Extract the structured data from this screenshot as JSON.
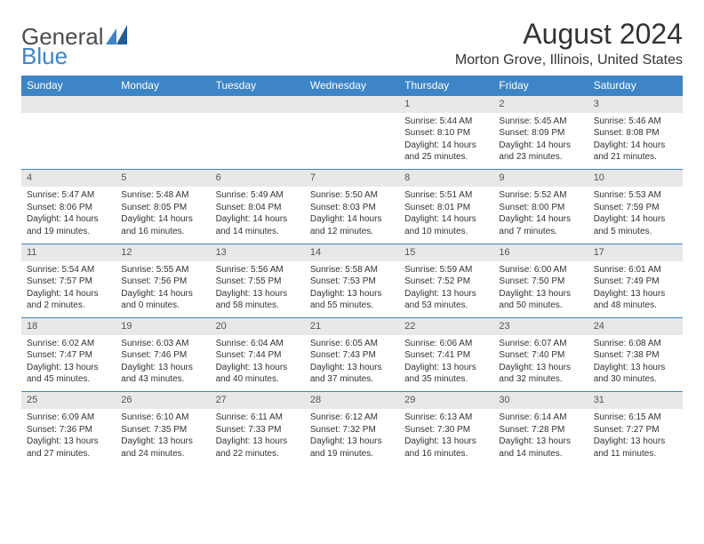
{
  "brand": {
    "general": "General",
    "blue": "Blue"
  },
  "header": {
    "title": "August 2024",
    "location": "Morton Grove, Illinois, United States"
  },
  "dow": [
    "Sunday",
    "Monday",
    "Tuesday",
    "Wednesday",
    "Thursday",
    "Friday",
    "Saturday"
  ],
  "colors": {
    "accent": "#3d85c6",
    "stripe": "#e8e8e8",
    "text": "#333333",
    "bg": "#ffffff"
  },
  "weeks": [
    [
      null,
      null,
      null,
      null,
      {
        "n": "1",
        "sr": "5:44 AM",
        "ss": "8:10 PM",
        "dh": "14",
        "dm": "25"
      },
      {
        "n": "2",
        "sr": "5:45 AM",
        "ss": "8:09 PM",
        "dh": "14",
        "dm": "23"
      },
      {
        "n": "3",
        "sr": "5:46 AM",
        "ss": "8:08 PM",
        "dh": "14",
        "dm": "21"
      }
    ],
    [
      {
        "n": "4",
        "sr": "5:47 AM",
        "ss": "8:06 PM",
        "dh": "14",
        "dm": "19"
      },
      {
        "n": "5",
        "sr": "5:48 AM",
        "ss": "8:05 PM",
        "dh": "14",
        "dm": "16"
      },
      {
        "n": "6",
        "sr": "5:49 AM",
        "ss": "8:04 PM",
        "dh": "14",
        "dm": "14"
      },
      {
        "n": "7",
        "sr": "5:50 AM",
        "ss": "8:03 PM",
        "dh": "14",
        "dm": "12"
      },
      {
        "n": "8",
        "sr": "5:51 AM",
        "ss": "8:01 PM",
        "dh": "14",
        "dm": "10"
      },
      {
        "n": "9",
        "sr": "5:52 AM",
        "ss": "8:00 PM",
        "dh": "14",
        "dm": "7"
      },
      {
        "n": "10",
        "sr": "5:53 AM",
        "ss": "7:59 PM",
        "dh": "14",
        "dm": "5"
      }
    ],
    [
      {
        "n": "11",
        "sr": "5:54 AM",
        "ss": "7:57 PM",
        "dh": "14",
        "dm": "2"
      },
      {
        "n": "12",
        "sr": "5:55 AM",
        "ss": "7:56 PM",
        "dh": "14",
        "dm": "0"
      },
      {
        "n": "13",
        "sr": "5:56 AM",
        "ss": "7:55 PM",
        "dh": "13",
        "dm": "58"
      },
      {
        "n": "14",
        "sr": "5:58 AM",
        "ss": "7:53 PM",
        "dh": "13",
        "dm": "55"
      },
      {
        "n": "15",
        "sr": "5:59 AM",
        "ss": "7:52 PM",
        "dh": "13",
        "dm": "53"
      },
      {
        "n": "16",
        "sr": "6:00 AM",
        "ss": "7:50 PM",
        "dh": "13",
        "dm": "50"
      },
      {
        "n": "17",
        "sr": "6:01 AM",
        "ss": "7:49 PM",
        "dh": "13",
        "dm": "48"
      }
    ],
    [
      {
        "n": "18",
        "sr": "6:02 AM",
        "ss": "7:47 PM",
        "dh": "13",
        "dm": "45"
      },
      {
        "n": "19",
        "sr": "6:03 AM",
        "ss": "7:46 PM",
        "dh": "13",
        "dm": "43"
      },
      {
        "n": "20",
        "sr": "6:04 AM",
        "ss": "7:44 PM",
        "dh": "13",
        "dm": "40"
      },
      {
        "n": "21",
        "sr": "6:05 AM",
        "ss": "7:43 PM",
        "dh": "13",
        "dm": "37"
      },
      {
        "n": "22",
        "sr": "6:06 AM",
        "ss": "7:41 PM",
        "dh": "13",
        "dm": "35"
      },
      {
        "n": "23",
        "sr": "6:07 AM",
        "ss": "7:40 PM",
        "dh": "13",
        "dm": "32"
      },
      {
        "n": "24",
        "sr": "6:08 AM",
        "ss": "7:38 PM",
        "dh": "13",
        "dm": "30"
      }
    ],
    [
      {
        "n": "25",
        "sr": "6:09 AM",
        "ss": "7:36 PM",
        "dh": "13",
        "dm": "27"
      },
      {
        "n": "26",
        "sr": "6:10 AM",
        "ss": "7:35 PM",
        "dh": "13",
        "dm": "24"
      },
      {
        "n": "27",
        "sr": "6:11 AM",
        "ss": "7:33 PM",
        "dh": "13",
        "dm": "22"
      },
      {
        "n": "28",
        "sr": "6:12 AM",
        "ss": "7:32 PM",
        "dh": "13",
        "dm": "19"
      },
      {
        "n": "29",
        "sr": "6:13 AM",
        "ss": "7:30 PM",
        "dh": "13",
        "dm": "16"
      },
      {
        "n": "30",
        "sr": "6:14 AM",
        "ss": "7:28 PM",
        "dh": "13",
        "dm": "14"
      },
      {
        "n": "31",
        "sr": "6:15 AM",
        "ss": "7:27 PM",
        "dh": "13",
        "dm": "11"
      }
    ]
  ]
}
